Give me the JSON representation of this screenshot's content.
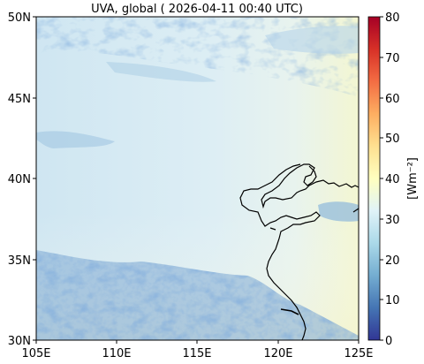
{
  "title": "UVA, global ( 2026-04-11 00:40 UTC)",
  "map": {
    "lon_range": [
      105,
      125
    ],
    "lat_range": [
      30,
      50
    ],
    "x_ticks": [
      "105E",
      "110E",
      "115E",
      "120E",
      "125E"
    ],
    "y_ticks": [
      "30N",
      "35N",
      "40N",
      "45N",
      "50N"
    ]
  },
  "colorbar": {
    "label": "[Wm⁻²]",
    "range": [
      0,
      80
    ],
    "ticks": [
      "0",
      "10",
      "20",
      "30",
      "40",
      "50",
      "60",
      "70",
      "80"
    ],
    "colormap": "RdYlBu_r"
  }
}
